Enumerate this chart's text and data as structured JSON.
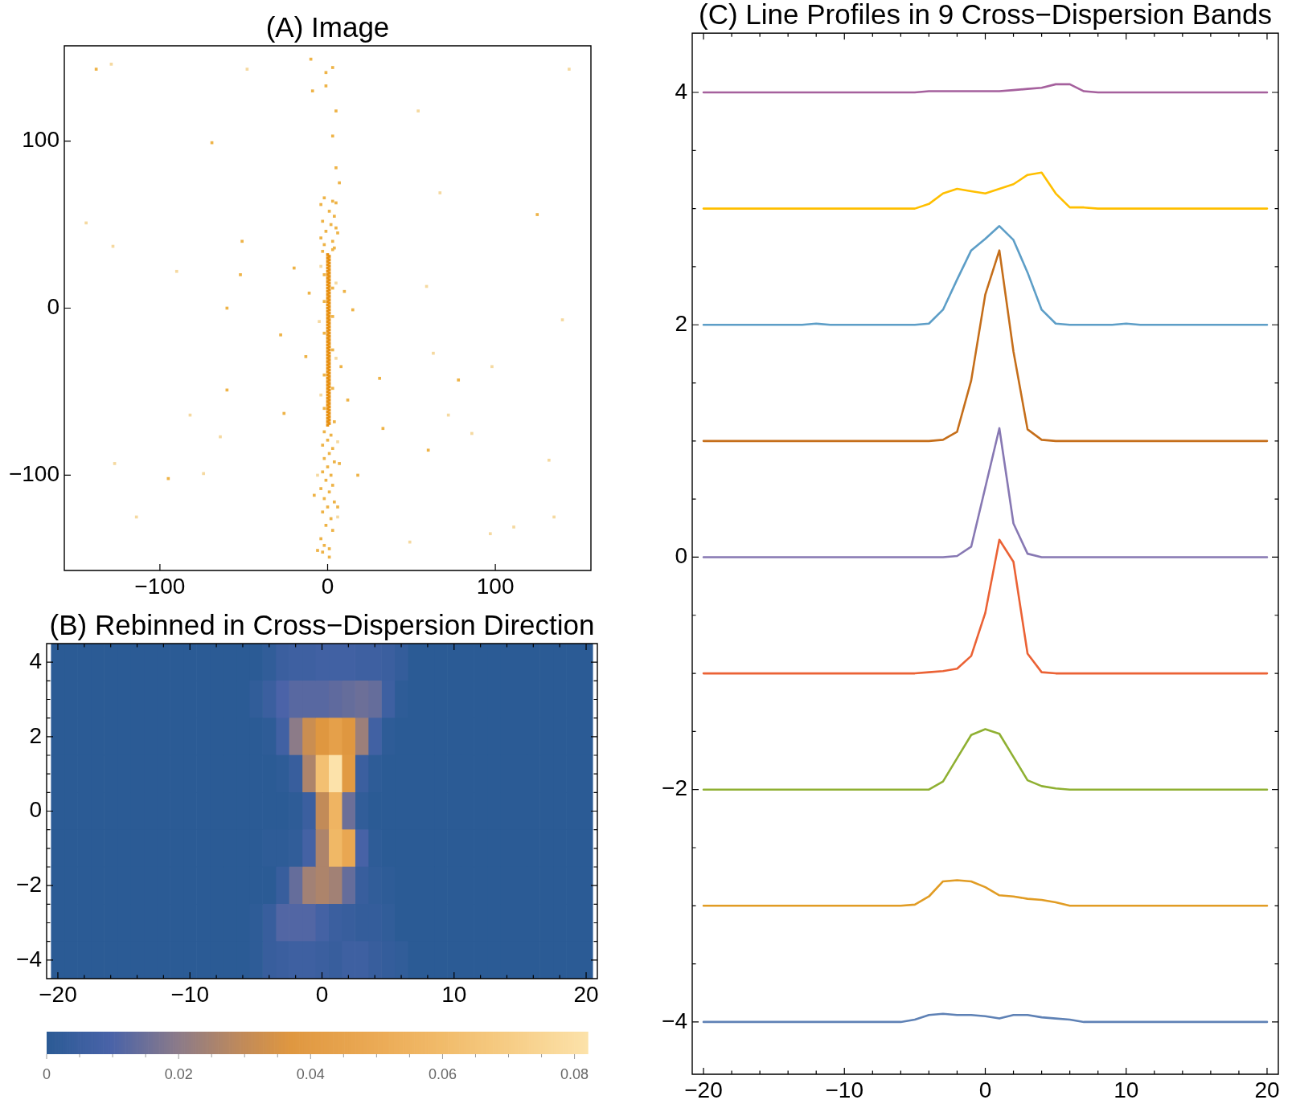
{
  "chart_data": [
    {
      "type": "scatter",
      "title": "(A) Image",
      "marker": "square",
      "xlim": [
        -157,
        157
      ],
      "ylim": [
        -157,
        157
      ],
      "xticks": [
        {
          "value": -100,
          "label": "−100"
        },
        0,
        100
      ],
      "yticks": [
        {
          "value": -100,
          "label": "−100"
        },
        0,
        100
      ],
      "series": [
        {
          "color": "#e89010",
          "x": [
            0,
            1,
            0,
            1,
            0,
            1,
            0,
            1,
            0,
            1,
            0,
            1,
            0,
            1,
            0,
            1,
            0,
            1,
            0,
            1,
            0,
            1,
            0,
            1,
            0,
            1,
            0,
            1,
            0,
            1,
            0,
            1,
            0,
            1,
            0,
            1,
            0,
            1,
            0,
            1,
            0,
            1,
            0,
            1,
            0,
            1,
            0,
            1,
            0,
            1,
            0,
            1,
            0,
            1,
            0,
            1,
            0,
            1,
            0,
            1,
            0,
            1,
            0,
            1,
            0,
            1,
            0,
            1,
            0,
            1,
            0,
            1,
            0,
            1,
            0,
            1,
            0,
            1,
            0,
            1,
            0,
            1,
            0,
            1,
            0,
            1,
            0,
            1,
            0,
            1,
            0,
            1,
            0,
            1,
            0,
            1,
            0,
            1,
            0,
            1,
            0,
            1,
            0
          ],
          "values": [
            32,
            31,
            30,
            29,
            28,
            27,
            26,
            25,
            24,
            23,
            22,
            21,
            20,
            19,
            18,
            17,
            16,
            15,
            14,
            13,
            12,
            11,
            10,
            9,
            8,
            7,
            6,
            5,
            4,
            3,
            2,
            1,
            0,
            -1,
            -2,
            -3,
            -4,
            -5,
            -6,
            -7,
            -8,
            -9,
            -10,
            -11,
            -12,
            -13,
            -14,
            -15,
            -16,
            -17,
            -18,
            -19,
            -20,
            -21,
            -22,
            -23,
            -24,
            -25,
            -26,
            -27,
            -28,
            -29,
            -30,
            -31,
            -32,
            -33,
            -34,
            -35,
            -36,
            -37,
            -38,
            -39,
            -40,
            -41,
            -42,
            -43,
            -44,
            -45,
            -46,
            -47,
            -48,
            -49,
            -50,
            -51,
            -52,
            -53,
            -54,
            -55,
            -56,
            -57,
            -58,
            -59,
            -60,
            -61,
            -62,
            -63,
            -64,
            -65,
            -66,
            -67,
            -68,
            -69,
            -70
          ]
        },
        {
          "color": "#eeb347",
          "x": [
            -2,
            3,
            -4,
            5,
            1,
            4,
            -3,
            2,
            5,
            -1,
            6,
            -4,
            3,
            -2,
            4,
            -3,
            3,
            -2,
            3,
            -2,
            3,
            -2,
            3,
            -2,
            3,
            -2,
            4,
            -2,
            2,
            0,
            -3,
            3,
            1,
            -2,
            4,
            0,
            -3,
            2,
            -1,
            3,
            -4,
            1,
            -2,
            4,
            0,
            -3,
            2,
            -1,
            3,
            -4,
            -2,
            1,
            -3,
            -10,
            -1,
            3,
            -9,
            -1,
            5,
            3,
            5,
            7,
            -69,
            125,
            -51,
            -52,
            -20,
            -11,
            10,
            -60,
            15,
            -28,
            -13,
            8,
            31,
            78,
            -60,
            12,
            -26,
            33,
            60,
            18,
            -95,
            -138,
            -8,
            6,
            7,
            -6,
            1
          ],
          "values": [
            66,
            64,
            62,
            63,
            58,
            55,
            52,
            50,
            48,
            46,
            45,
            42,
            40,
            38,
            36,
            34,
            35,
            20,
            12,
            4,
            -5,
            -15,
            -25,
            -40,
            -48,
            -60,
            -68,
            -74,
            -76,
            -79,
            -82,
            -84,
            -87,
            -90,
            -92,
            -95,
            -98,
            -100,
            -103,
            -106,
            -108,
            -110,
            -114,
            -116,
            -119,
            -122,
            -126,
            -130,
            -133,
            -138,
            -142,
            -144,
            -146,
            149,
            141,
            144,
            130,
            133,
            118,
            103,
            84,
            75,
            99,
            56,
            40,
            20,
            24,
            9,
            10,
            0,
            -1,
            -16,
            -29,
            -35,
            -42,
            -43,
            -49,
            -55,
            -63,
            -72,
            -85,
            -100,
            -102,
            143,
            -112,
            -119,
            -93,
            -145,
            -149
          ]
        },
        {
          "color": "#f5d9a0",
          "x": [
            -129,
            -48,
            144,
            -144,
            -128,
            -90,
            67,
            59,
            140,
            63,
            98,
            72,
            86,
            -82,
            -64,
            -127,
            -114,
            132,
            135,
            111,
            97,
            49,
            -74,
            54,
            -4,
            5,
            -5,
            5,
            -4,
            6,
            -6,
            6
          ],
          "values": [
            146,
            143,
            143,
            51,
            37,
            22,
            69,
            13,
            -7,
            -27,
            -35,
            -64,
            -75,
            -64,
            -77,
            -93,
            -125,
            -91,
            -125,
            -131,
            -135,
            -140,
            -99,
            118,
            25,
            15,
            -8,
            -30,
            -52,
            -80,
            -100,
            -125
          ]
        }
      ]
    },
    {
      "type": "heatmap",
      "title": "(B) Rebinned in Cross−Dispersion Direction",
      "x": [
        -20,
        -19,
        -18,
        -17,
        -16,
        -15,
        -14,
        -13,
        -12,
        -11,
        -10,
        -9,
        -8,
        -7,
        -6,
        -5,
        -4,
        -3,
        -2,
        -1,
        0,
        1,
        2,
        3,
        4,
        5,
        6,
        7,
        8,
        9,
        10,
        11,
        12,
        13,
        14,
        15,
        16,
        17,
        18,
        19,
        20
      ],
      "y_categories": [
        "4",
        null,
        "2",
        null,
        "0",
        null,
        "−2",
        null,
        "−4"
      ],
      "xlim": [
        -20.85,
        20.85
      ],
      "xticks": [
        {
          "value": -20,
          "label": "−20"
        },
        {
          "value": -18,
          "label": null
        },
        {
          "value": -16,
          "label": null
        },
        {
          "value": -14,
          "label": null
        },
        {
          "value": -12,
          "label": null
        },
        {
          "value": -10,
          "label": "−10"
        },
        {
          "value": -8,
          "label": null
        },
        {
          "value": -6,
          "label": null
        },
        {
          "value": -4,
          "label": null
        },
        {
          "value": -2,
          "label": null
        },
        0,
        {
          "value": 2,
          "label": null
        },
        {
          "value": 4,
          "label": null
        },
        {
          "value": 6,
          "label": null
        },
        {
          "value": 8,
          "label": null
        },
        10,
        {
          "value": 12,
          "label": null
        },
        {
          "value": 14,
          "label": null
        },
        {
          "value": 16,
          "label": null
        },
        {
          "value": 18,
          "label": null
        },
        20
      ],
      "clim": [
        0,
        0.082
      ],
      "cticks": [
        0,
        {
          "value": 0.005,
          "label": null
        },
        {
          "value": 0.01,
          "label": null
        },
        {
          "value": 0.015,
          "label": null
        },
        0.02,
        {
          "value": 0.025,
          "label": null
        },
        {
          "value": 0.03,
          "label": null
        },
        {
          "value": 0.035,
          "label": null
        },
        0.04,
        {
          "value": 0.045,
          "label": null
        },
        {
          "value": 0.05,
          "label": null
        },
        {
          "value": 0.055,
          "label": null
        },
        0.06,
        {
          "value": 0.065,
          "label": null
        },
        {
          "value": 0.07,
          "label": null
        },
        {
          "value": 0.075,
          "label": null
        },
        0.08
      ],
      "cells": [
        [
          0,
          0,
          0,
          0,
          0,
          0,
          0,
          0,
          0,
          0,
          0,
          0,
          0,
          0,
          0,
          0,
          0.002,
          0.005,
          0.006,
          0.006,
          0.007,
          0.007,
          0.007,
          0.006,
          0.006,
          0.005,
          0.003,
          0,
          0,
          0,
          0,
          0,
          0,
          0,
          0,
          0,
          0,
          0,
          0,
          0,
          0
        ],
        [
          0,
          0,
          0,
          0,
          0,
          0,
          0,
          0,
          0,
          0,
          0,
          0,
          0,
          0,
          0,
          0.002,
          0.005,
          0.01,
          0.012,
          0.012,
          0.012,
          0.013,
          0.014,
          0.015,
          0.014,
          0.006,
          0.001,
          0,
          0,
          0,
          0,
          0,
          0,
          0,
          0,
          0,
          0,
          0,
          0,
          0,
          0
        ],
        [
          0,
          0,
          0,
          0,
          0,
          0,
          0,
          0,
          0,
          0,
          0,
          0,
          0,
          0,
          0,
          0,
          0.001,
          0.007,
          0.02,
          0.032,
          0.037,
          0.043,
          0.037,
          0.023,
          0.007,
          0.001,
          0,
          0,
          0,
          0,
          0,
          0,
          0,
          0,
          0,
          0,
          0,
          0,
          0,
          0,
          0
        ],
        [
          0,
          0,
          0,
          0,
          0,
          0,
          0,
          0,
          0,
          0,
          0,
          0,
          0,
          0,
          0,
          0,
          0,
          0.001,
          0.004,
          0.026,
          0.063,
          0.082,
          0.039,
          0.005,
          0.001,
          0,
          0,
          0,
          0,
          0,
          0,
          0,
          0,
          0,
          0,
          0,
          0,
          0,
          0,
          0,
          0
        ],
        [
          0,
          0,
          0,
          0,
          0,
          0,
          0,
          0,
          0,
          0,
          0,
          0,
          0,
          0,
          0,
          0,
          0,
          0,
          0.001,
          0.005,
          0.03,
          0.056,
          0.015,
          0.002,
          0,
          0,
          0,
          0,
          0,
          0,
          0,
          0,
          0,
          0,
          0,
          0,
          0,
          0,
          0,
          0,
          0
        ],
        [
          0,
          0,
          0,
          0,
          0,
          0,
          0,
          0,
          0,
          0,
          0,
          0,
          0,
          0,
          0,
          0,
          0.001,
          0.001,
          0.002,
          0.008,
          0.026,
          0.058,
          0.048,
          0.009,
          0.001,
          0,
          0,
          0,
          0,
          0,
          0,
          0,
          0,
          0,
          0,
          0,
          0,
          0,
          0,
          0,
          0
        ],
        [
          0,
          0,
          0,
          0,
          0,
          0,
          0,
          0,
          0,
          0,
          0,
          0,
          0,
          0,
          0,
          0,
          0,
          0.004,
          0.014,
          0.024,
          0.026,
          0.024,
          0.014,
          0.004,
          0.002,
          0.001,
          0,
          0,
          0,
          0,
          0,
          0,
          0,
          0,
          0,
          0,
          0,
          0,
          0,
          0,
          0
        ],
        [
          0,
          0,
          0,
          0,
          0,
          0,
          0,
          0,
          0,
          0,
          0,
          0,
          0,
          0,
          0,
          0.001,
          0.004,
          0.011,
          0.011,
          0.011,
          0.008,
          0.005,
          0.004,
          0.003,
          0.003,
          0.002,
          0,
          0,
          0,
          0,
          0,
          0,
          0,
          0,
          0,
          0,
          0,
          0,
          0,
          0,
          0
        ],
        [
          0,
          0,
          0,
          0,
          0,
          0,
          0,
          0,
          0,
          0,
          0,
          0,
          0,
          0,
          0,
          0.001,
          0.004,
          0.005,
          0.006,
          0.006,
          0.005,
          0.004,
          0.006,
          0.006,
          0.004,
          0.003,
          0.002,
          0,
          0,
          0,
          0,
          0,
          0,
          0,
          0,
          0,
          0,
          0,
          0,
          0,
          0
        ]
      ]
    },
    {
      "type": "line",
      "title": "(C) Line Profiles in 9 Cross−Dispersion Bands",
      "x": [
        -20,
        -19,
        -18,
        -17,
        -16,
        -15,
        -14,
        -13,
        -12,
        -11,
        -10,
        -9,
        -8,
        -7,
        -6,
        -5,
        -4,
        -3,
        -2,
        -1,
        0,
        1,
        2,
        3,
        4,
        5,
        6,
        7,
        8,
        9,
        10,
        11,
        12,
        13,
        14,
        15,
        16,
        17,
        18,
        19,
        20
      ],
      "xlim": [
        -20.8,
        20.8
      ],
      "ylim": [
        -4.45,
        4.51
      ],
      "xticks": [
        {
          "value": -20,
          "label": "−20"
        },
        {
          "value": -18,
          "label": null
        },
        {
          "value": -16,
          "label": null
        },
        {
          "value": -14,
          "label": null
        },
        {
          "value": -12,
          "label": null
        },
        {
          "value": -10,
          "label": "−10"
        },
        {
          "value": -8,
          "label": null
        },
        {
          "value": -6,
          "label": null
        },
        {
          "value": -4,
          "label": null
        },
        {
          "value": -2,
          "label": null
        },
        0,
        {
          "value": 2,
          "label": null
        },
        {
          "value": 4,
          "label": null
        },
        {
          "value": 6,
          "label": null
        },
        {
          "value": 8,
          "label": null
        },
        10,
        {
          "value": 12,
          "label": null
        },
        {
          "value": 14,
          "label": null
        },
        {
          "value": 16,
          "label": null
        },
        {
          "value": 18,
          "label": null
        },
        20
      ],
      "yticks": [
        {
          "value": -4,
          "label": "−4"
        },
        {
          "value": -3.5,
          "label": null
        },
        {
          "value": -3,
          "label": null
        },
        {
          "value": -2.5,
          "label": null
        },
        {
          "value": -2,
          "label": "−2"
        },
        {
          "value": -1.5,
          "label": null
        },
        {
          "value": -1,
          "label": null
        },
        {
          "value": -0.5,
          "label": null
        },
        0,
        {
          "value": 0.5,
          "label": null
        },
        {
          "value": 1,
          "label": null
        },
        {
          "value": 1.5,
          "label": null
        },
        2,
        {
          "value": 2.5,
          "label": null
        },
        {
          "value": 3,
          "label": null
        },
        {
          "value": 3.5,
          "label": null
        },
        4
      ],
      "series": [
        {
          "color": "#5e81b5",
          "values": [
            -4,
            -4,
            -4,
            -4,
            -4,
            -4,
            -4,
            -4,
            -4,
            -4,
            -4,
            -4,
            -4,
            -4,
            -4,
            -3.98,
            -3.94,
            -3.93,
            -3.94,
            -3.94,
            -3.95,
            -3.97,
            -3.94,
            -3.94,
            -3.96,
            -3.97,
            -3.98,
            -4,
            -4,
            -4,
            -4,
            -4,
            -4,
            -4,
            -4,
            -4,
            -4,
            -4,
            -4,
            -4,
            -4
          ]
        },
        {
          "color": "#e19c24",
          "values": [
            -3,
            -3,
            -3,
            -3,
            -3,
            -3,
            -3,
            -3,
            -3,
            -3,
            -3,
            -3,
            -3,
            -3,
            -3,
            -2.99,
            -2.92,
            -2.79,
            -2.78,
            -2.79,
            -2.84,
            -2.91,
            -2.92,
            -2.94,
            -2.95,
            -2.97,
            -3,
            -3,
            -3,
            -3,
            -3,
            -3,
            -3,
            -3,
            -3,
            -3,
            -3,
            -3,
            -3,
            -3,
            -3
          ]
        },
        {
          "color": "#8fb032",
          "values": [
            -2,
            -2,
            -2,
            -2,
            -2,
            -2,
            -2,
            -2,
            -2,
            -2,
            -2,
            -2,
            -2,
            -2,
            -2,
            -2,
            -2,
            -1.93,
            -1.73,
            -1.53,
            -1.48,
            -1.52,
            -1.72,
            -1.92,
            -1.97,
            -1.99,
            -2,
            -2,
            -2,
            -2,
            -2,
            -2,
            -2,
            -2,
            -2,
            -2,
            -2,
            -2,
            -2,
            -2,
            -2
          ]
        },
        {
          "color": "#eb6235",
          "values": [
            -1,
            -1,
            -1,
            -1,
            -1,
            -1,
            -1,
            -1,
            -1,
            -1,
            -1,
            -1,
            -1,
            -1,
            -1,
            -1,
            -0.99,
            -0.98,
            -0.96,
            -0.85,
            -0.48,
            0.15,
            -0.04,
            -0.83,
            -0.99,
            -1,
            -1,
            -1,
            -1,
            -1,
            -1,
            -1,
            -1,
            -1,
            -1,
            -1,
            -1,
            -1,
            -1,
            -1,
            -1
          ]
        },
        {
          "color": "#8778b3",
          "values": [
            0,
            0,
            0,
            0,
            0,
            0,
            0,
            0,
            0,
            0,
            0,
            0,
            0,
            0,
            0,
            0,
            0,
            0,
            0.01,
            0.09,
            0.6,
            1.11,
            0.29,
            0.03,
            0,
            0,
            0,
            0,
            0,
            0,
            0,
            0,
            0,
            0,
            0,
            0,
            0,
            0,
            0,
            0,
            0
          ]
        },
        {
          "color": "#c56e1a",
          "values": [
            1,
            1,
            1,
            1,
            1,
            1,
            1,
            1,
            1,
            1,
            1,
            1,
            1,
            1,
            1,
            1,
            1,
            1.01,
            1.08,
            1.52,
            2.26,
            2.64,
            1.77,
            1.1,
            1.01,
            1,
            1,
            1,
            1,
            1,
            1,
            1,
            1,
            1,
            1,
            1,
            1,
            1,
            1,
            1,
            1
          ]
        },
        {
          "color": "#5d9ec7",
          "values": [
            2,
            2,
            2,
            2,
            2,
            2,
            2,
            2,
            2.01,
            2,
            2,
            2,
            2,
            2,
            2,
            2,
            2.01,
            2.13,
            2.39,
            2.64,
            2.74,
            2.85,
            2.73,
            2.45,
            2.13,
            2.01,
            2,
            2,
            2,
            2,
            2.01,
            2,
            2,
            2,
            2,
            2,
            2,
            2,
            2,
            2,
            2
          ]
        },
        {
          "color": "#ffbf00",
          "values": [
            3,
            3,
            3,
            3,
            3,
            3,
            3,
            3,
            3,
            3,
            3,
            3,
            3,
            3,
            3,
            3,
            3.04,
            3.13,
            3.17,
            3.15,
            3.13,
            3.17,
            3.21,
            3.29,
            3.31,
            3.13,
            3.01,
            3.01,
            3,
            3,
            3,
            3,
            3,
            3,
            3,
            3,
            3,
            3,
            3,
            3,
            3
          ]
        },
        {
          "color": "#a5609d",
          "values": [
            4,
            4,
            4,
            4,
            4,
            4,
            4,
            4,
            4,
            4,
            4,
            4,
            4,
            4,
            4,
            4,
            4.01,
            4.01,
            4.01,
            4.01,
            4.01,
            4.01,
            4.02,
            4.03,
            4.04,
            4.07,
            4.07,
            4.01,
            4,
            4,
            4,
            4,
            4,
            4,
            4,
            4,
            4,
            4,
            4,
            4,
            4
          ]
        }
      ]
    }
  ]
}
